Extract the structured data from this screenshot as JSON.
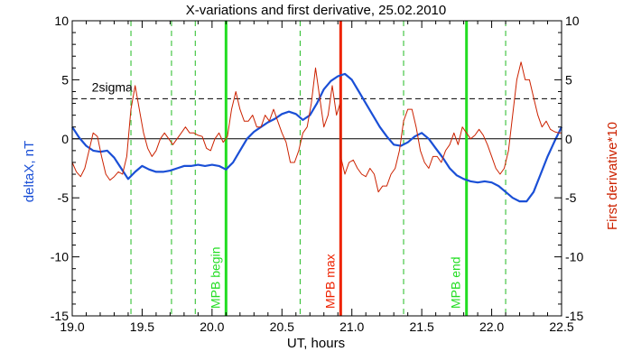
{
  "chart_data": {
    "type": "line",
    "title": "X-variations and first derivative, 25.02.2010",
    "xlabel": "UT, hours",
    "ylabel_left": "deltaX, nT",
    "ylabel_right": "First derivative*10",
    "xlim": [
      19.0,
      22.5
    ],
    "ylim": [
      -15,
      10
    ],
    "x_ticks": [
      19.0,
      19.5,
      20.0,
      20.5,
      21.0,
      21.5,
      22.0,
      22.5
    ],
    "x_tick_labels": [
      "19.0",
      "19.5",
      "20.0",
      "20.5",
      "21.0",
      "21.5",
      "22.0",
      "22.5"
    ],
    "y_ticks": [
      10,
      5,
      0,
      -5,
      -10,
      -15
    ],
    "y_tick_labels": [
      "10",
      "5",
      "0",
      "-5",
      "-10",
      "-15"
    ],
    "threshold": {
      "label": "2sigma",
      "y": 3.4
    },
    "colors": {
      "deltaX": "#1a4fd6",
      "derivative": "#cc2200",
      "mpb_begin_end": "#22dd22",
      "mpb_max": "#ee2200",
      "dashed_green": "#22bb22"
    },
    "dashed_markers_x": [
      19.42,
      19.71,
      19.88,
      20.63,
      21.37,
      22.1
    ],
    "events": [
      {
        "label": "MPB begin",
        "x": 20.1
      },
      {
        "label": "MPB max",
        "x": 20.92
      },
      {
        "label": "MPB end",
        "x": 21.82
      }
    ],
    "series": [
      {
        "name": "deltaX",
        "axis": "left",
        "x": [
          19.0,
          19.05,
          19.1,
          19.15,
          19.2,
          19.25,
          19.3,
          19.35,
          19.4,
          19.45,
          19.5,
          19.55,
          19.6,
          19.65,
          19.7,
          19.75,
          19.8,
          19.85,
          19.9,
          19.95,
          20.0,
          20.05,
          20.1,
          20.15,
          20.2,
          20.25,
          20.3,
          20.35,
          20.4,
          20.45,
          20.5,
          20.55,
          20.6,
          20.65,
          20.7,
          20.75,
          20.8,
          20.85,
          20.9,
          20.95,
          21.0,
          21.05,
          21.1,
          21.15,
          21.2,
          21.25,
          21.3,
          21.35,
          21.4,
          21.45,
          21.5,
          21.55,
          21.6,
          21.65,
          21.7,
          21.75,
          21.8,
          21.85,
          21.9,
          21.95,
          22.0,
          22.05,
          22.1,
          22.15,
          22.2,
          22.25,
          22.3,
          22.35,
          22.4,
          22.45,
          22.5
        ],
        "y": [
          1.0,
          0.1,
          -0.6,
          -1.0,
          -1.1,
          -1.0,
          -1.6,
          -2.5,
          -3.4,
          -2.8,
          -2.3,
          -2.6,
          -2.8,
          -2.8,
          -2.7,
          -2.5,
          -2.3,
          -2.3,
          -2.2,
          -2.3,
          -2.2,
          -2.3,
          -2.6,
          -2.0,
          -1.0,
          0.0,
          0.6,
          1.0,
          1.4,
          1.7,
          2.1,
          2.3,
          2.1,
          1.6,
          2.0,
          3.0,
          4.2,
          4.9,
          5.3,
          5.5,
          5.0,
          4.0,
          3.0,
          2.0,
          1.0,
          0.2,
          -0.5,
          -0.6,
          -0.3,
          0.2,
          0.5,
          0.0,
          -0.8,
          -1.6,
          -2.5,
          -3.1,
          -3.4,
          -3.6,
          -3.7,
          -3.6,
          -3.7,
          -4.0,
          -4.5,
          -5.0,
          -5.3,
          -5.3,
          -4.5,
          -3.0,
          -1.5,
          -0.2,
          1.0
        ]
      },
      {
        "name": "First derivative*10",
        "axis": "right",
        "x": [
          19.0,
          19.03,
          19.06,
          19.09,
          19.12,
          19.15,
          19.18,
          19.21,
          19.24,
          19.27,
          19.3,
          19.33,
          19.36,
          19.39,
          19.42,
          19.45,
          19.48,
          19.51,
          19.54,
          19.57,
          19.6,
          19.63,
          19.66,
          19.69,
          19.72,
          19.75,
          19.78,
          19.81,
          19.84,
          19.87,
          19.9,
          19.93,
          19.96,
          19.99,
          20.02,
          20.05,
          20.08,
          20.11,
          20.14,
          20.17,
          20.2,
          20.23,
          20.26,
          20.29,
          20.32,
          20.35,
          20.38,
          20.41,
          20.44,
          20.47,
          20.5,
          20.53,
          20.56,
          20.59,
          20.62,
          20.65,
          20.68,
          20.71,
          20.74,
          20.77,
          20.8,
          20.83,
          20.86,
          20.89,
          20.915,
          20.92,
          20.95,
          20.98,
          21.01,
          21.04,
          21.07,
          21.1,
          21.13,
          21.16,
          21.19,
          21.22,
          21.25,
          21.28,
          21.31,
          21.34,
          21.37,
          21.4,
          21.43,
          21.46,
          21.49,
          21.52,
          21.55,
          21.58,
          21.61,
          21.64,
          21.67,
          21.7,
          21.73,
          21.76,
          21.79,
          21.82,
          21.85,
          21.88,
          21.91,
          21.94,
          21.97,
          22.0,
          22.03,
          22.06,
          22.09,
          22.12,
          22.15,
          22.18,
          22.21,
          22.24,
          22.27,
          22.3,
          22.33,
          22.36,
          22.39,
          22.42,
          22.45,
          22.48,
          22.5
        ],
        "y": [
          -2.0,
          -2.8,
          -3.2,
          -2.5,
          -1.0,
          0.5,
          0.2,
          -1.5,
          -3.0,
          -3.5,
          -3.2,
          -2.8,
          -3.0,
          -1.5,
          2.5,
          4.5,
          2.5,
          0.5,
          -0.8,
          -1.5,
          -1.0,
          0.0,
          0.5,
          0.0,
          -0.5,
          0.0,
          0.5,
          1.0,
          0.5,
          0.5,
          0.3,
          0.2,
          -0.8,
          -1.0,
          0.0,
          0.5,
          -0.3,
          0.2,
          2.5,
          4.0,
          2.5,
          1.5,
          1.5,
          2.0,
          1.0,
          1.0,
          2.0,
          1.5,
          2.5,
          1.5,
          0.5,
          -0.3,
          -2.0,
          -2.0,
          -1.0,
          0.5,
          1.0,
          3.0,
          6.0,
          3.5,
          1.0,
          2.0,
          4.5,
          2.0,
          3.0,
          -1.5,
          -3.0,
          -2.0,
          -1.8,
          -2.5,
          -3.0,
          -3.2,
          -2.5,
          -3.0,
          -4.5,
          -4.0,
          -4.0,
          -3.0,
          -2.5,
          -1.0,
          1.5,
          2.5,
          2.5,
          1.0,
          -1.0,
          -2.0,
          -2.5,
          -1.5,
          -1.5,
          -2.0,
          -1.0,
          -0.5,
          0.5,
          -0.5,
          1.0,
          0.5,
          0.0,
          0.3,
          0.8,
          0.3,
          -0.5,
          -1.5,
          -2.5,
          -3.0,
          -2.5,
          -1.0,
          2.0,
          5.0,
          6.5,
          5.0,
          5.0,
          3.5,
          2.0,
          1.0,
          1.5,
          0.8,
          0.6,
          0.5,
          0.5
        ]
      }
    ]
  }
}
